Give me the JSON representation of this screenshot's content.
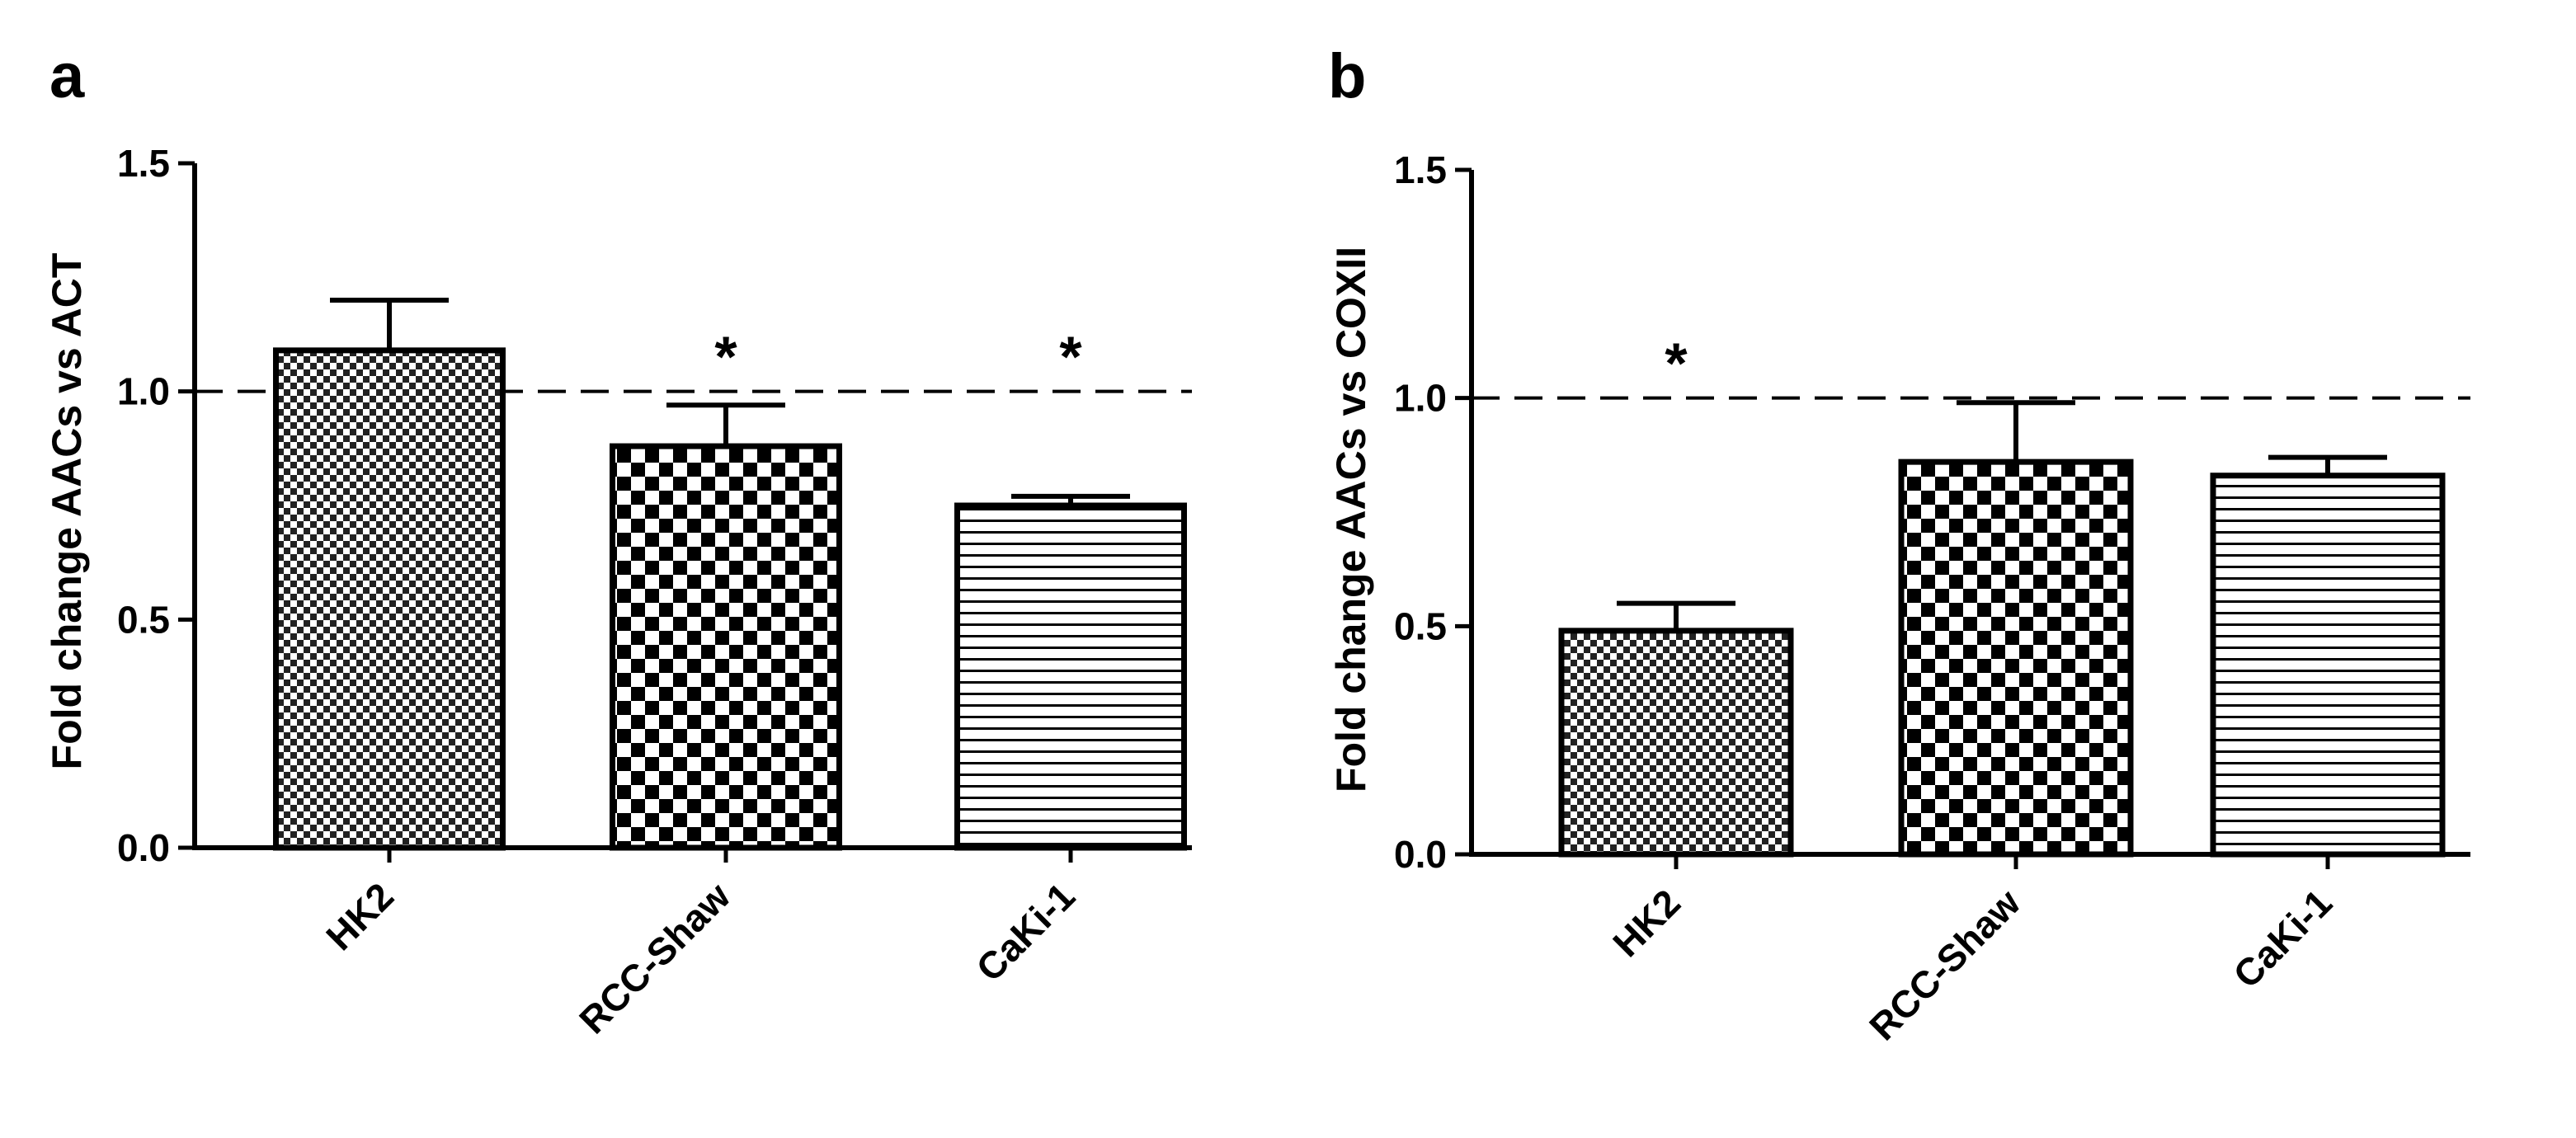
{
  "figure": {
    "panels": [
      "a",
      "b"
    ]
  },
  "chart_data": [
    {
      "type": "bar",
      "panel": "a",
      "title": "",
      "xlabel": "",
      "ylabel": "Fold change AACs vs ACT",
      "categories": [
        "HK2",
        "RCC-Shaw",
        "CaKi-1"
      ],
      "values": [
        1.09,
        0.88,
        0.75
      ],
      "error_upper": [
        0.11,
        0.09,
        0.02
      ],
      "significance": [
        "",
        "*",
        "*"
      ],
      "patterns": [
        "fine-check",
        "coarse-check",
        "hlines"
      ],
      "reference_line": 1.0,
      "ylim": [
        0,
        1.5
      ],
      "yticks": [
        "0.0",
        "0.5",
        "1.0",
        "1.5"
      ],
      "grid": false
    },
    {
      "type": "bar",
      "panel": "b",
      "title": "",
      "xlabel": "",
      "ylabel": "Fold change  AACs vs COXII",
      "categories": [
        "HK2",
        "RCC-Shaw",
        "CaKi-1"
      ],
      "values": [
        0.49,
        0.86,
        0.83
      ],
      "error_upper": [
        0.06,
        0.13,
        0.04
      ],
      "significance": [
        "*",
        "",
        ""
      ],
      "patterns": [
        "fine-check",
        "coarse-check",
        "hlines"
      ],
      "reference_line": 1.0,
      "ylim": [
        0,
        1.5
      ],
      "yticks": [
        "0.0",
        "0.5",
        "1.0",
        "1.5"
      ],
      "grid": false
    }
  ]
}
